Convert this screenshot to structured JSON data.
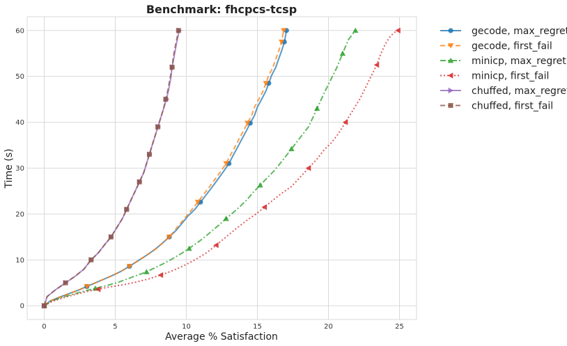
{
  "chart_data": {
    "type": "line",
    "title": "Benchmark: fhcpcs-tcsp",
    "xlabel": "Average % Satisfaction",
    "ylabel": "Time (s)",
    "xlim": [
      -1.2,
      26.2
    ],
    "ylim": [
      -3,
      63
    ],
    "xticks": [
      0,
      5,
      10,
      15,
      20,
      25
    ],
    "yticks": [
      0,
      10,
      20,
      30,
      40,
      50,
      60
    ],
    "grid": true,
    "legend_position": "outside-right",
    "series": [
      {
        "name": "gecode, max_regret",
        "color": "#1f77b4",
        "linestyle": "solid",
        "marker": "circle",
        "x": [
          0,
          0.4,
          1.0,
          1.7,
          2.4,
          3.0,
          3.6,
          4.2,
          4.8,
          5.4,
          6.0,
          6.6,
          7.2,
          7.8,
          8.3,
          8.8,
          9.3,
          9.7,
          10.1,
          10.6,
          11.0,
          11.4,
          11.8,
          12.2,
          12.6,
          13.0,
          13.3,
          13.6,
          13.9,
          14.2,
          14.5,
          14.8,
          15.0,
          15.3,
          15.6,
          15.8,
          16.0,
          16.3,
          16.5,
          16.7,
          16.9,
          17.05
        ],
        "y": [
          0,
          1,
          1.8,
          2.6,
          3.4,
          4.2,
          5,
          5.8,
          6.6,
          7.5,
          8.6,
          9.8,
          11,
          12.3,
          13.6,
          15,
          16.5,
          18,
          19.5,
          21,
          22.6,
          24.2,
          25.8,
          27.5,
          29.2,
          31,
          32.8,
          34.5,
          36.3,
          38,
          39.8,
          41.5,
          43.3,
          45,
          46.8,
          48.5,
          50.2,
          52,
          53.8,
          55.5,
          57.5,
          60
        ],
        "marker_every": 5
      },
      {
        "name": "gecode, first_fail",
        "color": "#ff7f0e",
        "linestyle": "dashed",
        "marker": "triangle-down",
        "x": [
          0,
          0.4,
          1.0,
          1.7,
          2.4,
          3.0,
          3.6,
          4.2,
          4.8,
          5.4,
          6.0,
          6.6,
          7.2,
          7.8,
          8.3,
          8.8,
          9.2,
          9.6,
          10.0,
          10.4,
          10.8,
          11.2,
          11.6,
          12.0,
          12.4,
          12.8,
          13.1,
          13.4,
          13.7,
          14.0,
          14.3,
          14.6,
          14.8,
          15.1,
          15.4,
          15.6,
          15.8,
          16.1,
          16.3,
          16.5,
          16.7,
          16.85
        ],
        "y": [
          0,
          1,
          1.8,
          2.6,
          3.4,
          4.2,
          5,
          5.8,
          6.6,
          7.5,
          8.6,
          9.8,
          11,
          12.3,
          13.6,
          15,
          16.5,
          18,
          19.5,
          21,
          22.6,
          24.2,
          25.8,
          27.5,
          29.2,
          31,
          32.8,
          34.5,
          36.3,
          38,
          39.8,
          41.5,
          43.3,
          45,
          46.8,
          48.5,
          50.2,
          52,
          53.8,
          55.5,
          57.5,
          60
        ],
        "marker_every": 5
      },
      {
        "name": "minicp, max_regret",
        "color": "#2ca02c",
        "linestyle": "dashdot",
        "marker": "triangle-up",
        "x": [
          0,
          0.5,
          1.2,
          2.0,
          2.8,
          3.6,
          4.4,
          5.2,
          5.8,
          6.5,
          7.2,
          7.8,
          8.4,
          9.0,
          9.6,
          10.2,
          10.8,
          11.3,
          11.8,
          12.3,
          12.8,
          13.3,
          13.8,
          14.3,
          14.7,
          15.2,
          15.7,
          16.2,
          16.6,
          17.0,
          17.4,
          17.8,
          18.2,
          18.6,
          18.9,
          19.2,
          19.5,
          19.8,
          20.2,
          20.6,
          21.0,
          21.4,
          21.9
        ],
        "y": [
          0,
          1,
          1.8,
          2.5,
          3.2,
          3.8,
          4.4,
          5.1,
          5.8,
          6.6,
          7.4,
          8.3,
          9.2,
          10.2,
          11.3,
          12.5,
          13.8,
          15,
          16.3,
          17.6,
          19,
          20.3,
          21.7,
          23.2,
          24.7,
          26.3,
          27.9,
          29.5,
          31,
          32.6,
          34.2,
          35.8,
          37.4,
          39,
          41,
          43,
          45,
          47,
          49.5,
          52,
          55,
          58,
          60
        ],
        "marker_every": 5
      },
      {
        "name": "minicp, first_fail",
        "color": "#d62728",
        "linestyle": "dotted",
        "marker": "triangle-left",
        "x": [
          0,
          0.6,
          1.4,
          2.2,
          3.0,
          3.8,
          4.6,
          5.6,
          6.5,
          7.4,
          8.2,
          9.0,
          9.8,
          10.6,
          11.4,
          12.1,
          12.8,
          13.5,
          14.2,
          14.9,
          15.5,
          16.1,
          16.7,
          17.4,
          18.0,
          18.6,
          19.2,
          19.7,
          20.2,
          20.7,
          21.2,
          21.7,
          22.2,
          22.6,
          23.0,
          23.4,
          23.7,
          24.0,
          24.3,
          24.6,
          24.9
        ],
        "y": [
          0,
          1,
          1.8,
          2.5,
          3.1,
          3.6,
          4.1,
          4.6,
          5.2,
          5.9,
          6.7,
          7.6,
          8.7,
          10,
          11.5,
          13.2,
          15,
          16.8,
          18.5,
          20,
          21.5,
          23,
          24.5,
          26,
          28,
          30,
          32,
          34,
          35.5,
          37.5,
          40,
          42.5,
          45,
          47.5,
          50,
          52.5,
          55,
          57,
          58.5,
          59.5,
          60
        ],
        "marker_every": 5
      },
      {
        "name": "chuffed, max_regret",
        "color": "#9467bd",
        "linestyle": "solid",
        "marker": "triangle-right",
        "x": [
          0,
          0.2,
          0.8,
          1.5,
          2.2,
          2.8,
          3.3,
          3.8,
          4.3,
          4.7,
          5.1,
          5.5,
          5.8,
          6.1,
          6.4,
          6.7,
          7.0,
          7.2,
          7.4,
          7.6,
          7.8,
          8.0,
          8.2,
          8.4,
          8.6,
          8.75,
          8.9,
          9.0,
          9.15,
          9.3,
          9.5
        ],
        "y": [
          0,
          2,
          3.5,
          5,
          6.5,
          8,
          10,
          11.5,
          13.5,
          15,
          17,
          19,
          21,
          23,
          25,
          27,
          29,
          31,
          33,
          35,
          37,
          39,
          41,
          43,
          45,
          47,
          49.5,
          52,
          54.5,
          57,
          60
        ],
        "marker_every": 3
      },
      {
        "name": "chuffed, first_fail",
        "color": "#8c564b",
        "linestyle": "dashed",
        "marker": "square",
        "x": [
          0,
          0.2,
          0.8,
          1.5,
          2.2,
          2.8,
          3.3,
          3.8,
          4.3,
          4.7,
          5.1,
          5.5,
          5.8,
          6.1,
          6.4,
          6.7,
          7.0,
          7.2,
          7.4,
          7.6,
          7.8,
          8.0,
          8.2,
          8.4,
          8.55,
          8.7,
          8.85,
          9.0,
          9.1,
          9.25,
          9.45
        ],
        "y": [
          0,
          2,
          3.5,
          5,
          6.5,
          8,
          10,
          11.5,
          13.5,
          15,
          17,
          19,
          21,
          23,
          25,
          27,
          29,
          31,
          33,
          35,
          37,
          39,
          41,
          43,
          45,
          47,
          49.5,
          52,
          54.5,
          57,
          60
        ],
        "marker_every": 3
      }
    ]
  }
}
